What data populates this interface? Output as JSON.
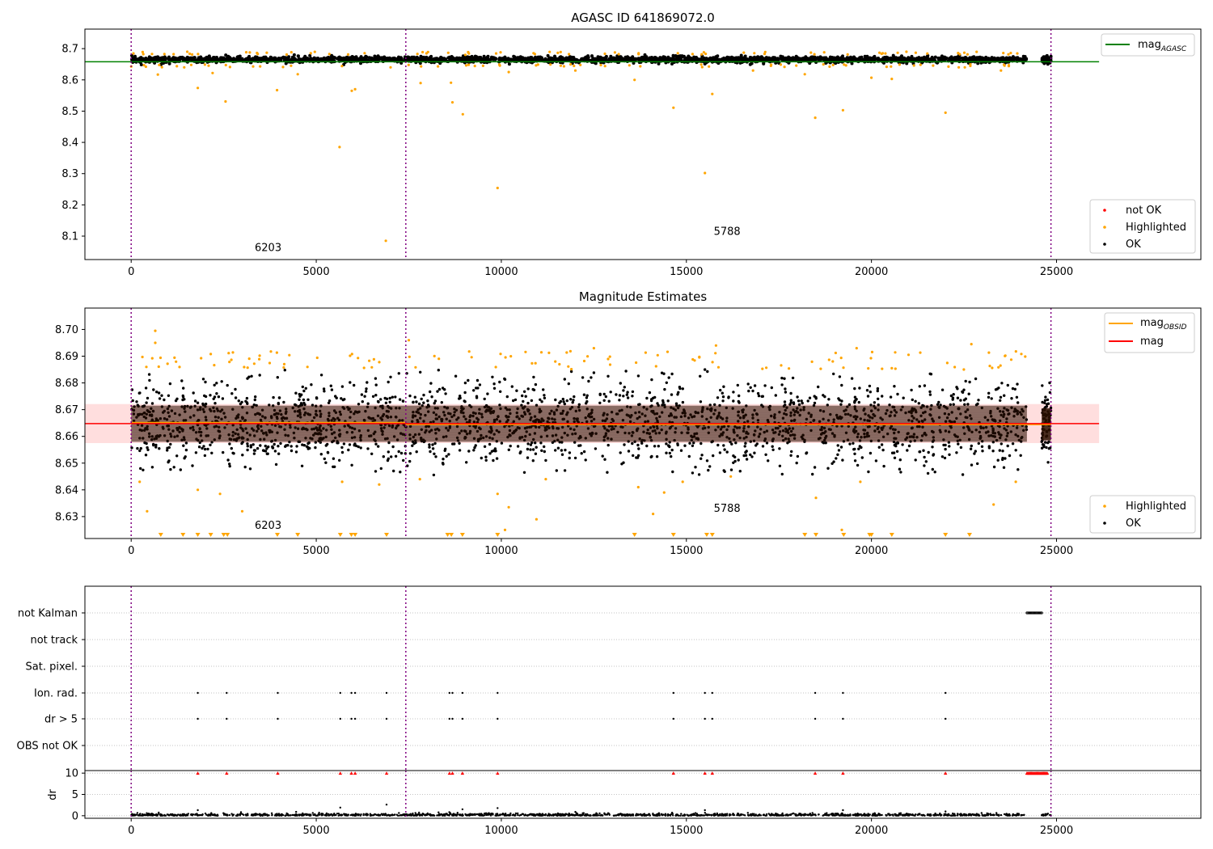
{
  "chart_data": [
    {
      "type": "scatter",
      "title": "AGASC ID 641869072.0",
      "x_ticks": [
        0,
        5000,
        10000,
        15000,
        20000,
        25000
      ],
      "y_ticks": [
        8.1,
        8.2,
        8.3,
        8.4,
        8.5,
        8.6,
        8.7
      ],
      "y_tick_labels": [
        "8.1",
        "8.2",
        "8.3",
        "8.4",
        "8.5",
        "8.6",
        "8.7"
      ],
      "xlim": [
        -1250,
        28900
      ],
      "ylim": [
        8.025,
        8.7625
      ],
      "mag_agasc": 8.658,
      "ok_band": {
        "x_end": 24200,
        "y_min": 8.652,
        "y_max": 8.678,
        "center": 8.665
      },
      "ok_tail": {
        "x_start": 24600,
        "x_end": 24850
      },
      "obsid_boundaries": [
        0,
        7420,
        24850
      ],
      "annotations": [
        {
          "text": "6203",
          "x": 3700,
          "y": 8.052
        },
        {
          "text": "5788",
          "x": 16100,
          "y": 8.104
        }
      ],
      "highlighted_points": [
        {
          "x": 720,
          "y": 8.617
        },
        {
          "x": 1800,
          "y": 8.574
        },
        {
          "x": 2550,
          "y": 8.531
        },
        {
          "x": 3940,
          "y": 8.567
        },
        {
          "x": 5630,
          "y": 8.385
        },
        {
          "x": 5960,
          "y": 8.565
        },
        {
          "x": 6050,
          "y": 8.57
        },
        {
          "x": 6880,
          "y": 8.085
        },
        {
          "x": 7820,
          "y": 8.59
        },
        {
          "x": 8640,
          "y": 8.591
        },
        {
          "x": 8680,
          "y": 8.528
        },
        {
          "x": 8960,
          "y": 8.49
        },
        {
          "x": 9900,
          "y": 8.254
        },
        {
          "x": 13600,
          "y": 8.6
        },
        {
          "x": 14650,
          "y": 8.511
        },
        {
          "x": 15500,
          "y": 8.302
        },
        {
          "x": 15700,
          "y": 8.555
        },
        {
          "x": 18480,
          "y": 8.479
        },
        {
          "x": 19230,
          "y": 8.503
        },
        {
          "x": 22000,
          "y": 8.495
        },
        {
          "x": 20000,
          "y": 8.607
        },
        {
          "x": 20550,
          "y": 8.603
        },
        {
          "x": 18200,
          "y": 8.618
        },
        {
          "x": 10200,
          "y": 8.625
        },
        {
          "x": 2200,
          "y": 8.622
        },
        {
          "x": 4500,
          "y": 8.618
        },
        {
          "x": 12000,
          "y": 8.63
        },
        {
          "x": 16800,
          "y": 8.63
        },
        {
          "x": 23500,
          "y": 8.63
        }
      ],
      "legend_top": [
        {
          "name_main": "mag",
          "name_sub": "AGASC",
          "color": "#008000"
        }
      ],
      "legend_bottom": [
        {
          "name": "not OK",
          "color": "#ff0000"
        },
        {
          "name": "Highlighted",
          "color": "#ffa500"
        },
        {
          "name": "OK",
          "color": "#000000"
        }
      ],
      "legend_top_placement": "upper right",
      "legend_bottom_placement": "lower right",
      "grid": false
    },
    {
      "type": "scatter",
      "title": "Magnitude Estimates",
      "x_ticks": [
        0,
        5000,
        10000,
        15000,
        20000,
        25000
      ],
      "y_ticks": [
        8.63,
        8.64,
        8.65,
        8.66,
        8.67,
        8.68,
        8.69,
        8.7
      ],
      "y_tick_labels": [
        "8.63",
        "8.64",
        "8.65",
        "8.66",
        "8.67",
        "8.68",
        "8.69",
        "8.70"
      ],
      "xlim": [
        -1250,
        28900
      ],
      "ylim": [
        8.6218,
        8.708
      ],
      "mag": 8.6648,
      "mag_band": [
        8.6575,
        8.6721
      ],
      "obsid_boundaries": [
        0,
        7420,
        24850
      ],
      "annotations": [
        {
          "text": "6203",
          "x": 3700,
          "y": 8.6255
        },
        {
          "text": "5788",
          "x": 16100,
          "y": 8.6318
        }
      ],
      "out_of_range_markers_x": [
        800,
        1400,
        1800,
        2150,
        2500,
        2600,
        3950,
        4500,
        5650,
        5950,
        6050,
        6900,
        8550,
        8650,
        8950,
        9900,
        13600,
        14650,
        15550,
        15700,
        18200,
        18500,
        19250,
        19950,
        20000,
        20550,
        22000,
        22650
      ],
      "highlighted_points": [
        {
          "x": 650,
          "y": 8.6995
        },
        {
          "x": 650,
          "y": 8.695
        },
        {
          "x": 230,
          "y": 8.643
        },
        {
          "x": 430,
          "y": 8.632
        },
        {
          "x": 1800,
          "y": 8.64
        },
        {
          "x": 2400,
          "y": 8.6385
        },
        {
          "x": 3000,
          "y": 8.632
        },
        {
          "x": 5700,
          "y": 8.643
        },
        {
          "x": 6700,
          "y": 8.642
        },
        {
          "x": 7500,
          "y": 8.696
        },
        {
          "x": 7800,
          "y": 8.644
        },
        {
          "x": 9900,
          "y": 8.6385
        },
        {
          "x": 10200,
          "y": 8.6335
        },
        {
          "x": 10100,
          "y": 8.625
        },
        {
          "x": 10950,
          "y": 8.629
        },
        {
          "x": 11200,
          "y": 8.644
        },
        {
          "x": 13700,
          "y": 8.641
        },
        {
          "x": 14100,
          "y": 8.631
        },
        {
          "x": 14400,
          "y": 8.639
        },
        {
          "x": 14900,
          "y": 8.643
        },
        {
          "x": 16200,
          "y": 8.645
        },
        {
          "x": 18500,
          "y": 8.637
        },
        {
          "x": 19200,
          "y": 8.625
        },
        {
          "x": 19700,
          "y": 8.643
        },
        {
          "x": 23300,
          "y": 8.6345
        },
        {
          "x": 23900,
          "y": 8.643
        },
        {
          "x": 22700,
          "y": 8.6945
        },
        {
          "x": 19600,
          "y": 8.693
        },
        {
          "x": 12500,
          "y": 8.693
        },
        {
          "x": 15800,
          "y": 8.694
        }
      ],
      "legend_top": [
        {
          "name_main": "mag",
          "name_sub": "OBSID",
          "color": "#ffa500"
        },
        {
          "name_main": "mag",
          "name_sub": "",
          "color": "#ff0000"
        }
      ],
      "legend_bottom": [
        {
          "name": "Highlighted",
          "color": "#ffa500"
        },
        {
          "name": "OK",
          "color": "#000000"
        }
      ],
      "legend_top_placement": "upper right",
      "legend_bottom_placement": "lower right",
      "grid": false
    },
    {
      "type": "scatter",
      "title": "",
      "flag_labels": [
        "not Kalman",
        "not track",
        "Sat. pixel.",
        "Ion. rad.",
        "dr > 5",
        "OBS not OK"
      ],
      "flag_events_x": [
        1800,
        2580,
        3960,
        5650,
        5950,
        6050,
        6900,
        8600,
        8680,
        8950,
        9900,
        14650,
        15500,
        15700,
        18480,
        19230,
        22000
      ],
      "not_kalman_range": [
        24200,
        24600
      ],
      "obsid_boundaries": [
        0,
        7420,
        24850
      ],
      "grid": true
    },
    {
      "type": "scatter",
      "title": "",
      "ylabel": "dr",
      "x_ticks": [
        0,
        5000,
        10000,
        15000,
        20000,
        25000
      ],
      "y_ticks": [
        0,
        5,
        10
      ],
      "y_tick_labels": [
        "0",
        "5",
        "10"
      ],
      "xlim": [
        -1250,
        28900
      ],
      "ylim": [
        -0.6,
        10.6
      ],
      "dr_clip": 10,
      "clipped_x": [
        1800,
        2580,
        3960,
        5650,
        5950,
        6050,
        6900,
        8600,
        8680,
        8950,
        9900,
        14650,
        15500,
        15700,
        18480,
        19230,
        22000
      ],
      "clipped_range": [
        24200,
        24750
      ],
      "outliers": [
        {
          "x": 1800,
          "y": 1.3
        },
        {
          "x": 5650,
          "y": 1.9
        },
        {
          "x": 6900,
          "y": 2.6
        },
        {
          "x": 8950,
          "y": 1.5
        },
        {
          "x": 9900,
          "y": 1.8
        },
        {
          "x": 15500,
          "y": 1.3
        },
        {
          "x": 19230,
          "y": 1.3
        },
        {
          "x": 22000,
          "y": 1.0
        },
        {
          "x": 12000,
          "y": 0.9
        }
      ],
      "obsid_boundaries": [
        0,
        7420,
        24850
      ],
      "grid": true
    }
  ]
}
